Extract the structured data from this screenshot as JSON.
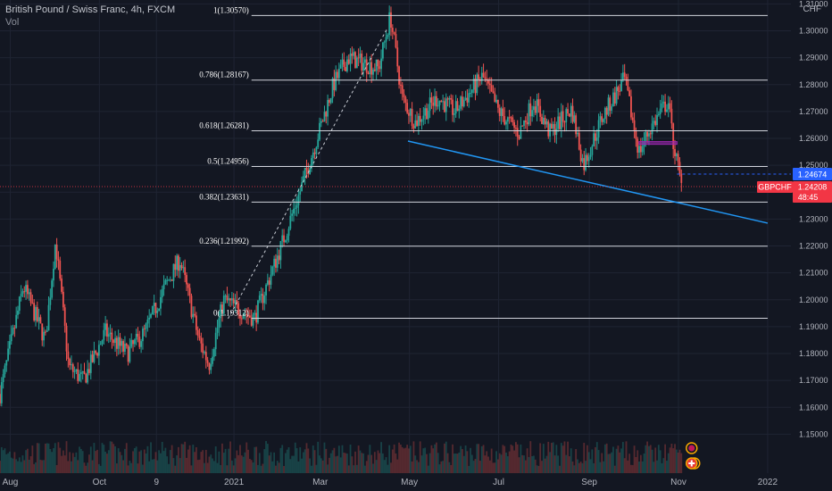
{
  "header": {
    "title": "British Pound / Swiss Franc, 4h, FXCM",
    "volume_label": "Vol",
    "currency": "CHF"
  },
  "chart_data": {
    "type": "candlestick",
    "symbol": "GBPCHF",
    "ylim": [
      1.145,
      1.314
    ],
    "y_ticks": [
      1.15,
      1.16,
      1.17,
      1.18,
      1.19,
      1.2,
      1.21,
      1.22,
      1.23,
      1.24,
      1.25,
      1.26,
      1.27,
      1.28,
      1.29,
      1.3,
      1.31
    ],
    "y_tick_labels": [
      "1.15000",
      "1.16000",
      "1.17000",
      "1.18000",
      "1.19000",
      "1.20000",
      "1.21000",
      "1.22000",
      "1.23000",
      "1.24000",
      "1.25000",
      "1.26000",
      "1.27000",
      "1.28000",
      "1.29000",
      "1.30000",
      "1.31000"
    ],
    "x_ticks": [
      {
        "label": "Aug",
        "date": "2020-08-01"
      },
      {
        "label": "Oct",
        "date": "2020-10-01"
      },
      {
        "label": "9",
        "date": "2020-11-09"
      },
      {
        "label": "2021",
        "date": "2021-01-01"
      },
      {
        "label": "Mar",
        "date": "2021-03-01"
      },
      {
        "label": "May",
        "date": "2021-05-01"
      },
      {
        "label": "Jul",
        "date": "2021-07-01"
      },
      {
        "label": "Sep",
        "date": "2021-09-01"
      },
      {
        "label": "Nov",
        "date": "2021-11-01"
      },
      {
        "label": "2022",
        "date": "2022-01-01"
      }
    ],
    "price_path": [
      {
        "date": "2020-07-25",
        "price": 1.165
      },
      {
        "date": "2020-08-10",
        "price": 1.205
      },
      {
        "date": "2020-08-25",
        "price": 1.185
      },
      {
        "date": "2020-09-01",
        "price": 1.222
      },
      {
        "date": "2020-09-10",
        "price": 1.175
      },
      {
        "date": "2020-09-20",
        "price": 1.17
      },
      {
        "date": "2020-10-05",
        "price": 1.188
      },
      {
        "date": "2020-10-20",
        "price": 1.18
      },
      {
        "date": "2020-11-01",
        "price": 1.188
      },
      {
        "date": "2020-11-15",
        "price": 1.205
      },
      {
        "date": "2020-11-25",
        "price": 1.215
      },
      {
        "date": "2020-12-08",
        "price": 1.185
      },
      {
        "date": "2020-12-15",
        "price": 1.176
      },
      {
        "date": "2020-12-25",
        "price": 1.2
      },
      {
        "date": "2021-01-15",
        "price": 1.193
      },
      {
        "date": "2021-02-01",
        "price": 1.218
      },
      {
        "date": "2021-02-15",
        "price": 1.24
      },
      {
        "date": "2021-02-28",
        "price": 1.262
      },
      {
        "date": "2021-03-10",
        "price": 1.28
      },
      {
        "date": "2021-03-20",
        "price": 1.29
      },
      {
        "date": "2021-04-10",
        "price": 1.286
      },
      {
        "date": "2021-04-18",
        "price": 1.3057
      },
      {
        "date": "2021-04-26",
        "price": 1.275
      },
      {
        "date": "2021-05-05",
        "price": 1.266
      },
      {
        "date": "2021-05-20",
        "price": 1.275
      },
      {
        "date": "2021-06-01",
        "price": 1.27
      },
      {
        "date": "2021-06-20",
        "price": 1.283
      },
      {
        "date": "2021-07-01",
        "price": 1.27
      },
      {
        "date": "2021-07-15",
        "price": 1.262
      },
      {
        "date": "2021-07-25",
        "price": 1.274
      },
      {
        "date": "2021-08-05",
        "price": 1.262
      },
      {
        "date": "2021-08-20",
        "price": 1.271
      },
      {
        "date": "2021-08-28",
        "price": 1.25
      },
      {
        "date": "2021-09-10",
        "price": 1.268
      },
      {
        "date": "2021-09-25",
        "price": 1.282
      },
      {
        "date": "2021-10-05",
        "price": 1.255
      },
      {
        "date": "2021-10-12",
        "price": 1.263
      },
      {
        "date": "2021-10-20",
        "price": 1.27
      },
      {
        "date": "2021-10-25",
        "price": 1.274
      },
      {
        "date": "2021-10-28",
        "price": 1.26
      },
      {
        "date": "2021-11-03",
        "price": 1.2421
      }
    ],
    "fib_levels": [
      {
        "label": "1(1.30570)",
        "value": 1.3057
      },
      {
        "label": "0.786(1.28167)",
        "value": 1.28167
      },
      {
        "label": "0.618(1.26281)",
        "value": 1.26281
      },
      {
        "label": "0.5(1.24956)",
        "value": 1.24956
      },
      {
        "label": "0.382(1.23631)",
        "value": 1.23631
      },
      {
        "label": "0.236(1.21992)",
        "value": 1.21992
      },
      {
        "label": "0(1.19312)",
        "value": 1.19312
      }
    ],
    "fib_range": {
      "start": "2021-01-13",
      "end": "2022-01-01"
    },
    "trendline": [
      {
        "date": "2021-04-30",
        "price": 1.259
      },
      {
        "date": "2022-01-01",
        "price": 1.2285
      }
    ],
    "fib_connector": [
      {
        "date": "2020-12-28",
        "price": 1.193
      },
      {
        "date": "2021-04-16",
        "price": 1.301
      }
    ],
    "support_zone": {
      "start": "2021-10-05",
      "end": "2021-10-31",
      "top": 1.2588,
      "bottom": 1.2578
    },
    "price_label": {
      "value": 1.24674,
      "text": "1.24674",
      "color": "#2962ff"
    },
    "current_label": {
      "symbol": "GBPCHF",
      "value": 1.24208,
      "text": "1.24208",
      "countdown": "48:45",
      "color": "#f23645"
    },
    "colors": {
      "up": "#26a69a",
      "down": "#ef5350",
      "fib": "#d1d4dc",
      "trendline": "#2196f3",
      "zone": "#9c27b0",
      "grid": "#1f2433",
      "axis_text": "#b2b5be"
    }
  }
}
